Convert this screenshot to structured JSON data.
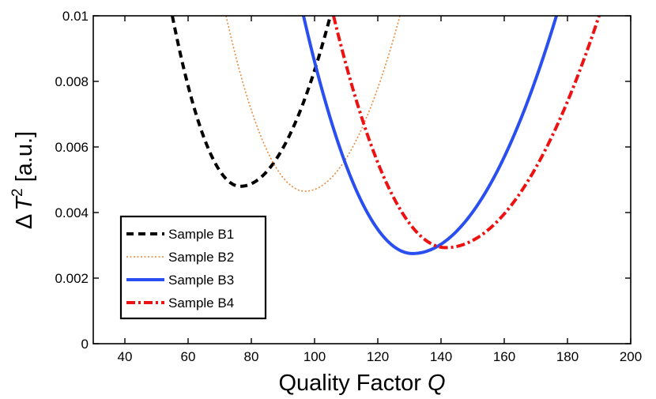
{
  "chart_data": {
    "type": "line",
    "title": "",
    "xlabel": "Quality Factor",
    "xlabel_var": "Q",
    "ylabel_prefix": "Δ",
    "ylabel_var": "T",
    "ylabel_sup": "2",
    "ylabel_units": " [a.u.]",
    "xlim": [
      30,
      200
    ],
    "ylim": [
      0,
      0.01
    ],
    "xticks": [
      40,
      60,
      80,
      100,
      120,
      140,
      160,
      180,
      200
    ],
    "yticks": [
      0,
      0.002,
      0.004,
      0.006,
      0.008,
      0.01
    ],
    "ytick_labels": [
      "0",
      "0.002",
      "0.004",
      "0.006",
      "0.008",
      "0.01"
    ],
    "grid": false,
    "legend_position": "bottom-left",
    "series": [
      {
        "name": "Sample B1",
        "style": "dashed",
        "color": "#000000",
        "q_min": 76.5,
        "y_min": 0.0048,
        "x_at_top_left": 55,
        "x_at_top_right": 105
      },
      {
        "name": "Sample B2",
        "style": "dotted",
        "color": "#e8893a",
        "q_min": 97,
        "y_min": 0.00465,
        "x_at_top_left": 72,
        "x_at_top_right": 127
      },
      {
        "name": "Sample B3",
        "style": "solid",
        "color": "#2a4ff0",
        "q_min": 131,
        "y_min": 0.00275,
        "x_at_top_left": 96.5,
        "x_at_top_right": 176.5
      },
      {
        "name": "Sample B4",
        "style": "dashdot",
        "color": "#ee1111",
        "q_min": 141.5,
        "y_min": 0.00293,
        "x_at_top_left": 106,
        "x_at_top_right": 190
      }
    ]
  }
}
